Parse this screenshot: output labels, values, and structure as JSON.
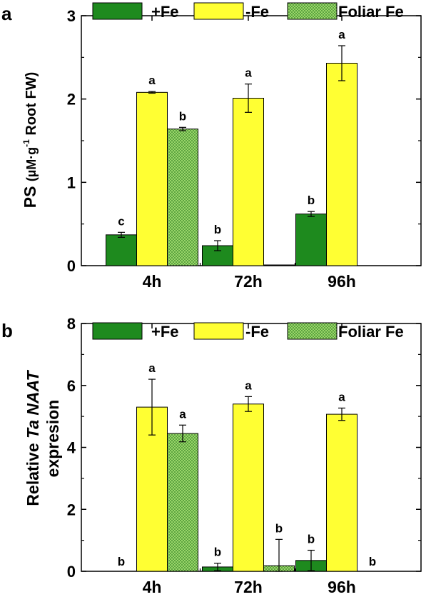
{
  "chart_data": [
    {
      "panel": "a",
      "type": "bar",
      "ylabel_main": "PS",
      "ylabel_unit_pre": "(µM·g",
      "ylabel_unit_sup": "-1",
      "ylabel_unit_post": " Root FW)",
      "categories": [
        "4h",
        "72h",
        "96h"
      ],
      "ylim": [
        0,
        3
      ],
      "yticks": [
        "0",
        "1",
        "2",
        "3"
      ],
      "series": [
        {
          "name": "+Fe",
          "values": [
            0.37,
            0.24,
            0.62
          ],
          "errors": [
            0.03,
            0.06,
            0.03
          ],
          "letters": [
            "c",
            "b",
            "b"
          ]
        },
        {
          "name": "-Fe",
          "values": [
            2.08,
            2.01,
            2.43
          ],
          "errors": [
            0.01,
            0.17,
            0.21
          ],
          "letters": [
            "a",
            "a",
            "a"
          ]
        },
        {
          "name": "Foliar Fe",
          "values": [
            1.64,
            0.005,
            null
          ],
          "errors": [
            0.02,
            0,
            0
          ],
          "letters": [
            "b",
            "",
            ""
          ]
        }
      ]
    },
    {
      "panel": "b",
      "type": "bar",
      "ylabel_line1_pre": "Relative ",
      "ylabel_line1_italic": "Ta NAAT",
      "ylabel_line2": "expresion",
      "categories": [
        "4h",
        "72h",
        "96h"
      ],
      "ylim": [
        0,
        8
      ],
      "yticks": [
        "0",
        "2",
        "4",
        "6",
        "8"
      ],
      "series": [
        {
          "name": "+Fe",
          "values": [
            0,
            0.14,
            0.35
          ],
          "errors": [
            0,
            0.12,
            0.33
          ],
          "letters": [
            "b",
            "b",
            "b"
          ]
        },
        {
          "name": "-Fe",
          "values": [
            5.3,
            5.4,
            5.07
          ],
          "errors": [
            0.9,
            0.24,
            0.2
          ],
          "letters": [
            "a",
            "a",
            "a"
          ]
        },
        {
          "name": "Foliar Fe",
          "values": [
            4.45,
            0.18,
            0
          ],
          "errors": [
            0.27,
            0.85,
            0
          ],
          "letters": [
            "a",
            "b",
            "b"
          ]
        }
      ]
    }
  ],
  "colors": {
    "plus_fe": "#1e8a1e",
    "minus_fe": "#ffff33",
    "foliar_fe": "#7fc94a",
    "foliar_dot": "#3a8f2a"
  }
}
